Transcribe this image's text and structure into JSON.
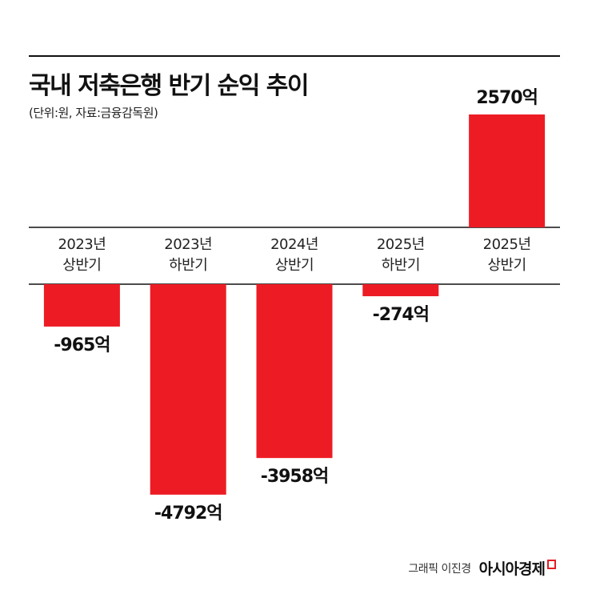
{
  "header": {
    "title": "국내 저축은행 반기 순익 추이",
    "subtitle": "(단위:원, 자료:금융감독원)"
  },
  "footer": {
    "credit": "그래픽 이진경",
    "brand": "아시아경제"
  },
  "colors": {
    "bar": "#ed1c24",
    "rule": "#111111"
  },
  "chart_data": {
    "type": "bar",
    "categories": [
      [
        "2023년",
        "상반기"
      ],
      [
        "2023년",
        "하반기"
      ],
      [
        "2024년",
        "상반기"
      ],
      [
        "2025년",
        "하반기"
      ],
      [
        "2025년",
        "상반기"
      ]
    ],
    "values": [
      -965,
      -4792,
      -3958,
      -274,
      2570
    ],
    "value_labels": [
      "-965억",
      "-4792억",
      "-3958억",
      "-274억",
      "2570억"
    ],
    "unit": "억",
    "grid": false,
    "legend": "none"
  }
}
